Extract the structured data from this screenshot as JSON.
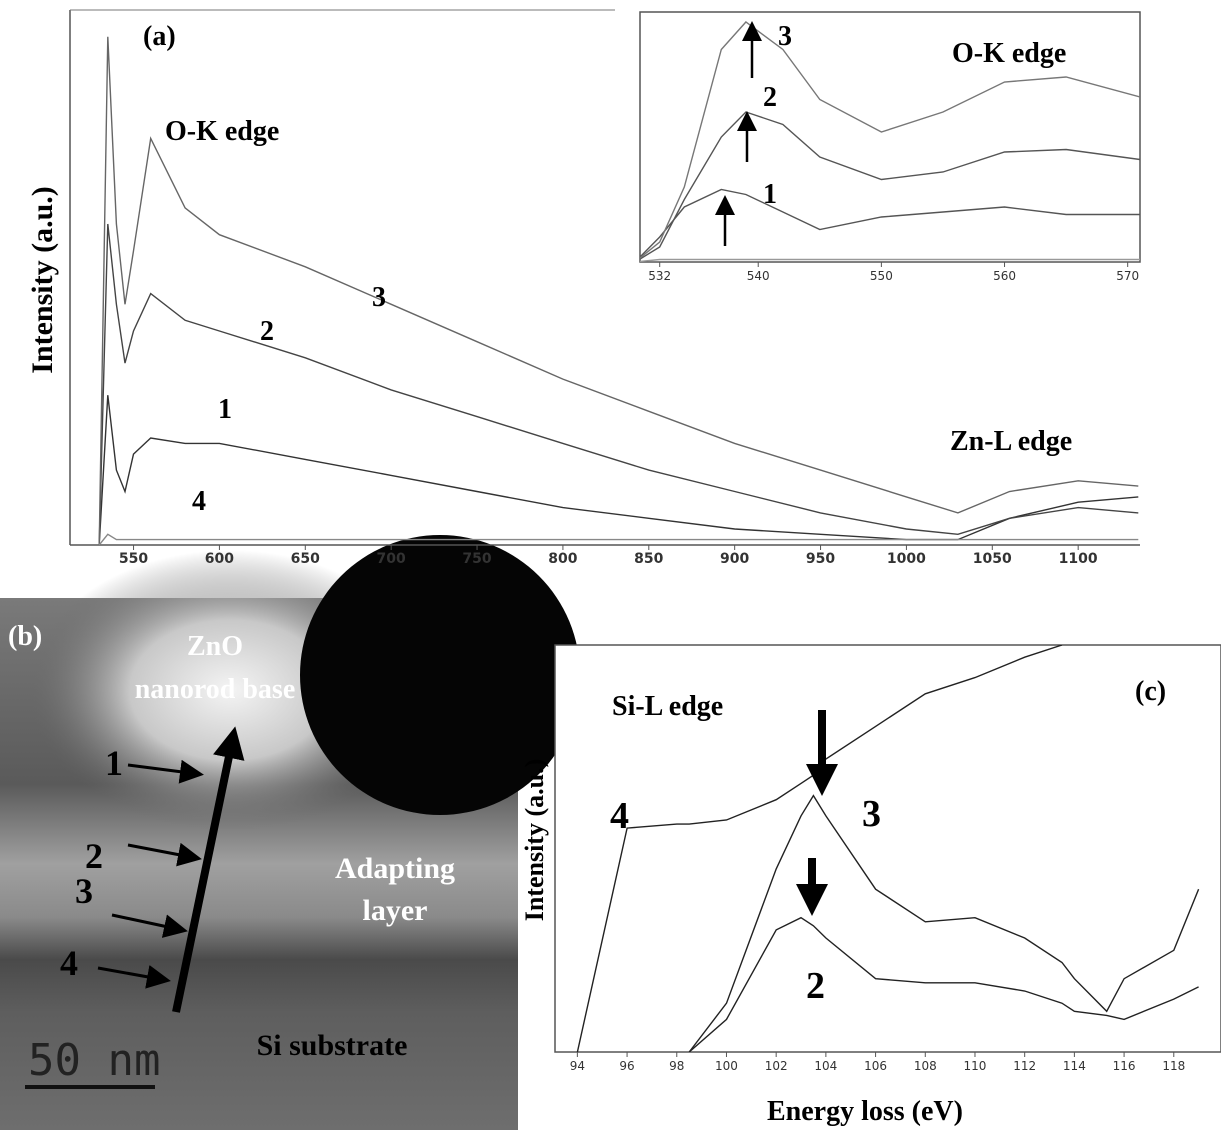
{
  "chart_data": [
    {
      "type": "line",
      "panel_label": "(a)",
      "ylabel": "Intensity (a.u.)",
      "annotations": [
        "O-K edge",
        "Zn-L edge"
      ],
      "x": [
        530,
        535,
        540,
        545,
        550,
        560,
        580,
        600,
        650,
        700,
        750,
        800,
        850,
        900,
        950,
        1000,
        1030,
        1060,
        1100,
        1135
      ],
      "xlim": [
        513,
        1136
      ],
      "xticks": [
        550,
        600,
        650,
        700,
        750,
        800,
        850,
        900,
        950,
        1000,
        1050,
        1100
      ],
      "ylim": [
        0,
        100
      ],
      "series": [
        {
          "name": "1",
          "color": "#333333",
          "values": [
            0,
            28,
            14,
            10,
            17,
            20,
            19,
            19,
            16,
            13,
            10,
            7,
            5,
            3,
            2,
            1,
            1,
            5,
            8,
            9
          ]
        },
        {
          "name": "2",
          "color": "#444444",
          "values": [
            0,
            60,
            45,
            34,
            40,
            47,
            42,
            40,
            35,
            29,
            24,
            19,
            14,
            10,
            6,
            3,
            2,
            5,
            7,
            6
          ]
        },
        {
          "name": "3",
          "color": "#666666",
          "values": [
            0,
            95,
            60,
            45,
            55,
            76,
            63,
            58,
            52,
            45,
            38,
            31,
            25,
            19,
            14,
            9,
            6,
            10,
            12,
            11
          ]
        },
        {
          "name": "4",
          "color": "#888888",
          "values": [
            0,
            2,
            1,
            1,
            1,
            1,
            1,
            1,
            1,
            1,
            1,
            1,
            1,
            1,
            1,
            1,
            1,
            1,
            1,
            1
          ]
        }
      ]
    },
    {
      "type": "line",
      "annotations": [
        "O-K edge"
      ],
      "x": [
        530,
        532,
        534,
        537,
        539,
        542,
        545,
        550,
        555,
        560,
        565,
        571
      ],
      "xlim": [
        530.4,
        571
      ],
      "xticks": [
        532,
        540,
        550,
        560,
        570
      ],
      "ylim": [
        0,
        100
      ],
      "series": [
        {
          "name": "1",
          "color": "#555555",
          "values": [
            0,
            10,
            22,
            29,
            27,
            20,
            13,
            18,
            20,
            22,
            19,
            19
          ]
        },
        {
          "name": "2",
          "color": "#555555",
          "values": [
            0,
            6,
            25,
            50,
            60,
            55,
            42,
            33,
            36,
            44,
            45,
            41
          ]
        },
        {
          "name": "3",
          "color": "#777777",
          "values": [
            0,
            8,
            30,
            85,
            96,
            85,
            65,
            52,
            60,
            72,
            74,
            66
          ]
        },
        {
          "color": "#999999",
          "values": [
            0,
            1,
            1,
            1,
            1,
            1,
            1,
            1,
            1,
            1,
            1,
            1
          ]
        }
      ]
    },
    {
      "type": "line",
      "panel_label": "(c)",
      "xlabel": "Energy loss (eV)",
      "ylabel": "Intensity (a.u.)",
      "annotations": [
        "Si-L edge"
      ],
      "x": [
        94,
        96,
        98,
        98.5,
        100,
        102,
        103,
        103.5,
        104,
        106,
        108,
        110,
        112,
        113.5,
        114,
        115.3,
        116,
        118,
        119
      ],
      "xlim": [
        93.1,
        119.9
      ],
      "xticks": [
        94,
        96,
        98,
        100,
        102,
        104,
        106,
        108,
        110,
        112,
        114,
        116,
        118
      ],
      "ylim": [
        0,
        100
      ],
      "series": [
        {
          "name": "2",
          "color": "#222222",
          "values": [
            null,
            null,
            null,
            0,
            8,
            30,
            33,
            31,
            28,
            18,
            17,
            17,
            15,
            12,
            10,
            9,
            8,
            13,
            16
          ]
        },
        {
          "name": "3",
          "color": "#222222",
          "values": [
            null,
            null,
            null,
            0,
            12,
            45,
            58,
            63,
            58,
            40,
            32,
            33,
            28,
            22,
            18,
            10,
            18,
            25,
            40
          ]
        },
        {
          "name": "4",
          "color": "#222222",
          "values": [
            0,
            55,
            56,
            56,
            57,
            62,
            66,
            68,
            72,
            80,
            88,
            92,
            97,
            100,
            null,
            null,
            null,
            null,
            null
          ]
        }
      ]
    }
  ],
  "image_panel": {
    "panel_label": "(b)",
    "labels": [
      "ZnO",
      "nanorod base",
      "Adapting",
      "layer",
      "Si substrate",
      "1",
      "2",
      "3",
      "4"
    ],
    "scale_bar": "50 nm"
  }
}
